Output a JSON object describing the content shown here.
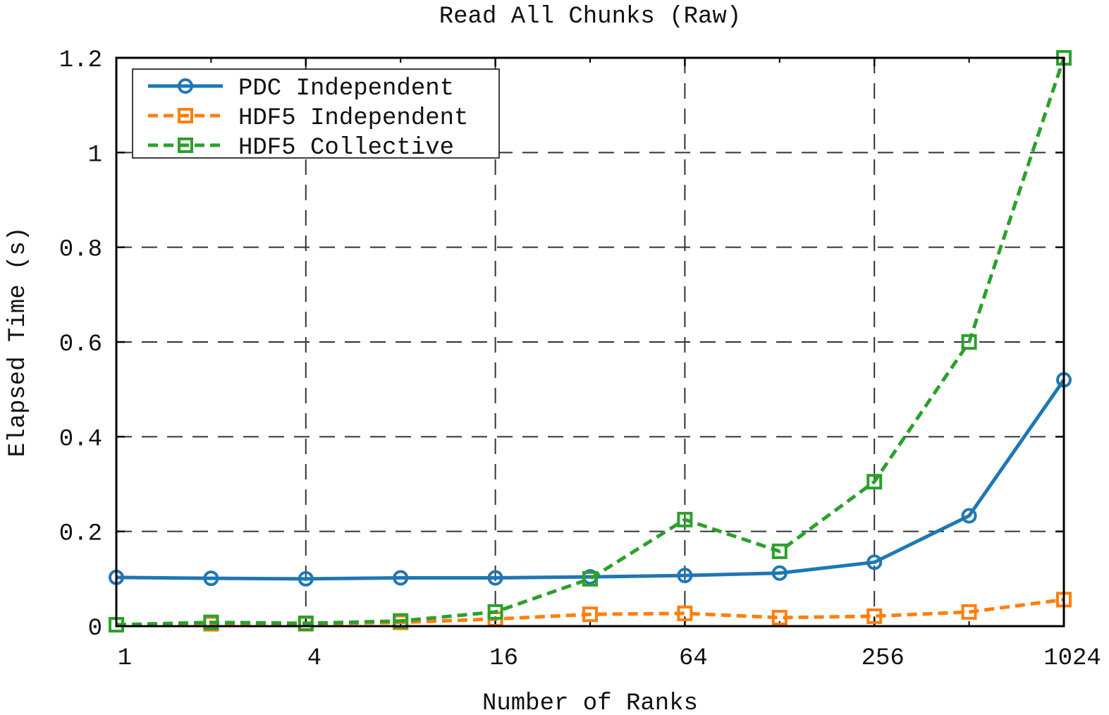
{
  "chart_data": {
    "type": "line",
    "title": "Read All Chunks (Raw)",
    "xlabel": "Number of Ranks",
    "ylabel": "Elapsed Time (s)",
    "x_scale": "log2",
    "x": [
      1,
      2,
      4,
      8,
      16,
      32,
      64,
      128,
      256,
      512,
      1024
    ],
    "x_ticks": [
      "1",
      "4",
      "16",
      "64",
      "256",
      "1024"
    ],
    "x_tick_values": [
      1,
      4,
      16,
      64,
      256,
      1024
    ],
    "y_ticks": [
      "0",
      "0.2",
      "0.4",
      "0.6",
      "0.8",
      "1",
      "1.2"
    ],
    "y_tick_values": [
      0,
      0.2,
      0.4,
      0.6,
      0.8,
      1.0,
      1.2
    ],
    "ylim": [
      0,
      1.2
    ],
    "xlim": [
      1,
      1024
    ],
    "grid": true,
    "legend_position": "top-left",
    "series": [
      {
        "name": "PDC Independent",
        "color": "#1f77b4",
        "line_style": "solid",
        "marker": "circle",
        "values": [
          0.103,
          0.101,
          0.1,
          0.102,
          0.102,
          0.104,
          0.107,
          0.112,
          0.135,
          0.233,
          0.52
        ]
      },
      {
        "name": "HDF5 Independent",
        "color": "#ff7f0e",
        "line_style": "dashed",
        "marker": "square",
        "values": [
          0.003,
          0.005,
          0.005,
          0.008,
          0.015,
          0.025,
          0.027,
          0.018,
          0.021,
          0.03,
          0.056
        ]
      },
      {
        "name": "HDF5 Collective",
        "color": "#2ca02c",
        "line_style": "dashed",
        "marker": "square",
        "values": [
          0.003,
          0.008,
          0.006,
          0.011,
          0.03,
          0.1,
          0.225,
          0.158,
          0.305,
          0.6,
          1.2
        ]
      }
    ]
  }
}
